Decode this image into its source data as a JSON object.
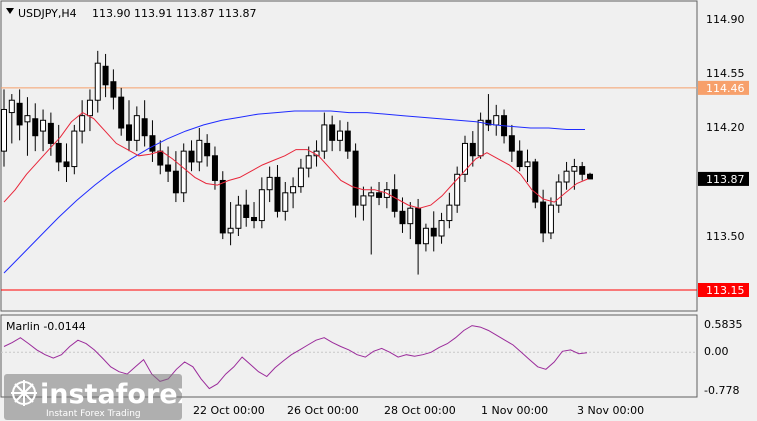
{
  "header": {
    "symbol": "USDJPY,H4",
    "ohlc": "113.90 113.91 113.87 113.87"
  },
  "indicator": {
    "name": "Marlin",
    "value": "-0.0144",
    "label": "Marlin -0.0144"
  },
  "price_axis": [
    "114.90",
    "114.55",
    "114.20",
    "113.50"
  ],
  "price_tags": [
    {
      "text": "114.46",
      "price": 114.46,
      "color": "#f7a06b"
    },
    {
      "text": "113.87",
      "price": 113.87,
      "color": "#000000"
    },
    {
      "text": "113.15",
      "price": 113.15,
      "color": "#ff0000"
    }
  ],
  "osc_axis": [
    "0.5835",
    "0.00",
    "-0.778"
  ],
  "time_axis": [
    "22 Oct 00:00",
    "26 Oct 00:00",
    "28 Oct 00:00",
    "1 Nov 00:00",
    "3 Nov 00:00"
  ],
  "watermark": {
    "brand": "instaforex",
    "tagline": "Instant Forex Trading"
  },
  "colors": {
    "ma_long": "#1f2bff",
    "ma_short": "#e8263a",
    "oscillator": "#9b2c9b",
    "resistance": "#f7a06b",
    "support": "#ff0000"
  },
  "chart_data": {
    "type": "candlestick",
    "price_ylim": [
      113.05,
      114.97
    ],
    "osc_ylim": [
      -0.85,
      0.7
    ],
    "horizontal_levels": [
      114.46,
      113.15
    ],
    "candles": [
      {
        "o": 114.05,
        "h": 114.45,
        "l": 113.95,
        "c": 114.32
      },
      {
        "o": 114.3,
        "h": 114.42,
        "l": 114.1,
        "c": 114.38
      },
      {
        "o": 114.36,
        "h": 114.45,
        "l": 114.12,
        "c": 114.22
      },
      {
        "o": 114.24,
        "h": 114.4,
        "l": 114.02,
        "c": 114.28
      },
      {
        "o": 114.26,
        "h": 114.36,
        "l": 114.05,
        "c": 114.15
      },
      {
        "o": 114.18,
        "h": 114.32,
        "l": 114.05,
        "c": 114.25
      },
      {
        "o": 114.23,
        "h": 114.3,
        "l": 114.02,
        "c": 114.1
      },
      {
        "o": 114.1,
        "h": 114.22,
        "l": 113.92,
        "c": 113.98
      },
      {
        "o": 113.98,
        "h": 114.1,
        "l": 113.85,
        "c": 113.95
      },
      {
        "o": 113.95,
        "h": 114.22,
        "l": 113.9,
        "c": 114.18
      },
      {
        "o": 114.18,
        "h": 114.38,
        "l": 114.1,
        "c": 114.28
      },
      {
        "o": 114.28,
        "h": 114.45,
        "l": 114.18,
        "c": 114.38
      },
      {
        "o": 114.38,
        "h": 114.7,
        "l": 114.3,
        "c": 114.62
      },
      {
        "o": 114.6,
        "h": 114.68,
        "l": 114.4,
        "c": 114.48
      },
      {
        "o": 114.5,
        "h": 114.58,
        "l": 114.32,
        "c": 114.4
      },
      {
        "o": 114.4,
        "h": 114.46,
        "l": 114.15,
        "c": 114.2
      },
      {
        "o": 114.22,
        "h": 114.38,
        "l": 114.05,
        "c": 114.12
      },
      {
        "o": 114.12,
        "h": 114.34,
        "l": 114.05,
        "c": 114.28
      },
      {
        "o": 114.26,
        "h": 114.38,
        "l": 114.08,
        "c": 114.15
      },
      {
        "o": 114.15,
        "h": 114.25,
        "l": 113.98,
        "c": 114.05
      },
      {
        "o": 114.05,
        "h": 114.12,
        "l": 113.9,
        "c": 113.96
      },
      {
        "o": 113.96,
        "h": 114.08,
        "l": 113.85,
        "c": 113.92
      },
      {
        "o": 113.92,
        "h": 114.05,
        "l": 113.72,
        "c": 113.78
      },
      {
        "o": 113.78,
        "h": 114.1,
        "l": 113.72,
        "c": 114.05
      },
      {
        "o": 114.05,
        "h": 114.12,
        "l": 113.92,
        "c": 113.98
      },
      {
        "o": 113.98,
        "h": 114.2,
        "l": 113.92,
        "c": 114.12
      },
      {
        "o": 114.1,
        "h": 114.16,
        "l": 113.95,
        "c": 114.02
      },
      {
        "o": 114.02,
        "h": 114.08,
        "l": 113.8,
        "c": 113.86
      },
      {
        "o": 113.86,
        "h": 113.92,
        "l": 113.48,
        "c": 113.52
      },
      {
        "o": 113.52,
        "h": 113.72,
        "l": 113.44,
        "c": 113.55
      },
      {
        "o": 113.55,
        "h": 113.76,
        "l": 113.5,
        "c": 113.7
      },
      {
        "o": 113.7,
        "h": 113.8,
        "l": 113.56,
        "c": 113.62
      },
      {
        "o": 113.62,
        "h": 113.72,
        "l": 113.55,
        "c": 113.6
      },
      {
        "o": 113.6,
        "h": 113.88,
        "l": 113.55,
        "c": 113.8
      },
      {
        "o": 113.8,
        "h": 113.95,
        "l": 113.72,
        "c": 113.88
      },
      {
        "o": 113.88,
        "h": 113.96,
        "l": 113.62,
        "c": 113.66
      },
      {
        "o": 113.66,
        "h": 113.85,
        "l": 113.6,
        "c": 113.78
      },
      {
        "o": 113.78,
        "h": 113.88,
        "l": 113.68,
        "c": 113.82
      },
      {
        "o": 113.82,
        "h": 114.0,
        "l": 113.78,
        "c": 113.94
      },
      {
        "o": 113.94,
        "h": 114.08,
        "l": 113.88,
        "c": 114.02
      },
      {
        "o": 114.02,
        "h": 114.12,
        "l": 113.95,
        "c": 114.05
      },
      {
        "o": 114.05,
        "h": 114.3,
        "l": 114.0,
        "c": 114.22
      },
      {
        "o": 114.22,
        "h": 114.28,
        "l": 114.05,
        "c": 114.12
      },
      {
        "o": 114.12,
        "h": 114.25,
        "l": 114.05,
        "c": 114.18
      },
      {
        "o": 114.18,
        "h": 114.24,
        "l": 114.0,
        "c": 114.05
      },
      {
        "o": 114.05,
        "h": 114.1,
        "l": 113.62,
        "c": 113.7
      },
      {
        "o": 113.7,
        "h": 113.82,
        "l": 113.6,
        "c": 113.76
      },
      {
        "o": 113.76,
        "h": 113.82,
        "l": 113.38,
        "c": 113.78
      },
      {
        "o": 113.78,
        "h": 113.85,
        "l": 113.7,
        "c": 113.75
      },
      {
        "o": 113.75,
        "h": 113.85,
        "l": 113.68,
        "c": 113.8
      },
      {
        "o": 113.8,
        "h": 113.9,
        "l": 113.62,
        "c": 113.66
      },
      {
        "o": 113.66,
        "h": 113.75,
        "l": 113.52,
        "c": 113.58
      },
      {
        "o": 113.58,
        "h": 113.72,
        "l": 113.48,
        "c": 113.68
      },
      {
        "o": 113.68,
        "h": 113.74,
        "l": 113.25,
        "c": 113.45
      },
      {
        "o": 113.45,
        "h": 113.58,
        "l": 113.4,
        "c": 113.55
      },
      {
        "o": 113.55,
        "h": 113.66,
        "l": 113.4,
        "c": 113.5
      },
      {
        "o": 113.5,
        "h": 113.65,
        "l": 113.45,
        "c": 113.6
      },
      {
        "o": 113.6,
        "h": 113.78,
        "l": 113.55,
        "c": 113.7
      },
      {
        "o": 113.7,
        "h": 113.95,
        "l": 113.65,
        "c": 113.9
      },
      {
        "o": 113.9,
        "h": 114.15,
        "l": 113.85,
        "c": 114.1
      },
      {
        "o": 114.1,
        "h": 114.18,
        "l": 113.95,
        "c": 114.02
      },
      {
        "o": 114.02,
        "h": 114.3,
        "l": 114.0,
        "c": 114.25
      },
      {
        "o": 114.25,
        "h": 114.42,
        "l": 114.18,
        "c": 114.22
      },
      {
        "o": 114.22,
        "h": 114.35,
        "l": 114.15,
        "c": 114.28
      },
      {
        "o": 114.28,
        "h": 114.32,
        "l": 114.1,
        "c": 114.15
      },
      {
        "o": 114.15,
        "h": 114.22,
        "l": 113.98,
        "c": 114.05
      },
      {
        "o": 114.05,
        "h": 114.12,
        "l": 113.92,
        "c": 113.95
      },
      {
        "o": 113.95,
        "h": 114.06,
        "l": 113.85,
        "c": 113.98
      },
      {
        "o": 113.98,
        "h": 114.0,
        "l": 113.68,
        "c": 113.72
      },
      {
        "o": 113.72,
        "h": 113.8,
        "l": 113.46,
        "c": 113.52
      },
      {
        "o": 113.52,
        "h": 113.75,
        "l": 113.48,
        "c": 113.7
      },
      {
        "o": 113.7,
        "h": 113.9,
        "l": 113.65,
        "c": 113.85
      },
      {
        "o": 113.85,
        "h": 113.98,
        "l": 113.8,
        "c": 113.92
      },
      {
        "o": 113.92,
        "h": 114.0,
        "l": 113.8,
        "c": 113.95
      },
      {
        "o": 113.95,
        "h": 113.98,
        "l": 113.86,
        "c": 113.9
      },
      {
        "o": 113.9,
        "h": 113.91,
        "l": 113.87,
        "c": 113.87
      }
    ],
    "ma_long": [
      113.26,
      113.38,
      113.5,
      113.62,
      113.73,
      113.83,
      113.92,
      114.0,
      114.07,
      114.13,
      114.18,
      114.22,
      114.25,
      114.27,
      114.29,
      114.3,
      114.31,
      114.31,
      114.31,
      114.3,
      114.3,
      114.29,
      114.28,
      114.27,
      114.26,
      114.25,
      114.24,
      114.22,
      114.21,
      114.2,
      114.2,
      114.19,
      114.19
    ],
    "ma_short": [
      113.72,
      113.8,
      113.9,
      113.98,
      114.06,
      114.14,
      114.24,
      114.3,
      114.26,
      114.18,
      114.1,
      114.06,
      114.02,
      114.03,
      114.05,
      114.0,
      113.94,
      113.88,
      113.84,
      113.83,
      113.86,
      113.88,
      113.92,
      113.96,
      113.99,
      114.02,
      114.06,
      114.06,
      114.02,
      113.94,
      113.86,
      113.82,
      113.8,
      113.8,
      113.78,
      113.74,
      113.7,
      113.68,
      113.7,
      113.76,
      113.84,
      113.92,
      114.0,
      114.04,
      114.0,
      113.96,
      113.9,
      113.8,
      113.74,
      113.72,
      113.78,
      113.84,
      113.87
    ],
    "oscillator": [
      0.12,
      0.2,
      0.3,
      0.18,
      0.05,
      -0.05,
      -0.12,
      -0.05,
      0.12,
      0.25,
      0.18,
      0.05,
      -0.12,
      -0.3,
      -0.4,
      -0.45,
      -0.3,
      -0.15,
      -0.45,
      -0.6,
      -0.55,
      -0.35,
      -0.2,
      -0.3,
      -0.55,
      -0.75,
      -0.65,
      -0.45,
      -0.3,
      -0.1,
      -0.25,
      -0.4,
      -0.5,
      -0.32,
      -0.18,
      -0.05,
      0.05,
      0.15,
      0.25,
      0.3,
      0.2,
      0.12,
      0.05,
      -0.05,
      -0.1,
      0.02,
      0.08,
      0.0,
      -0.1,
      -0.05,
      -0.08,
      -0.05,
      0.0,
      0.1,
      0.18,
      0.3,
      0.45,
      0.55,
      0.52,
      0.45,
      0.35,
      0.25,
      0.15,
      0.0,
      -0.15,
      -0.3,
      -0.35,
      -0.2,
      0.02,
      0.05,
      -0.03,
      -0.01
    ]
  }
}
